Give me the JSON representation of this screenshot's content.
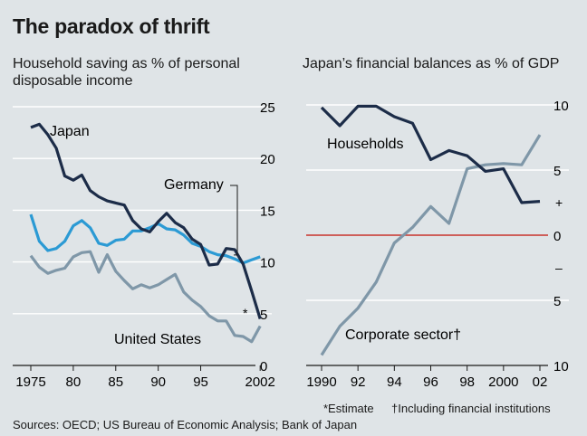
{
  "title": "The paradox of thrift",
  "sources": "Sources: OECD; US Bureau of Economic Analysis; Bank of Japan",
  "footnotes": {
    "estimate": "*Estimate",
    "including": "†Including financial institutions"
  },
  "colors": {
    "background": "#dfe4e7",
    "japan": "#1c2c48",
    "germany": "#2b9ad4",
    "united_states": "#7f97a8",
    "households": "#1c2c48",
    "corporate": "#7f97a8",
    "zero_line": "#c8332b",
    "grid": "#ffffff"
  },
  "chart_data": [
    {
      "type": "line",
      "title": "",
      "subtitle": "Household saving as % of personal disposable income",
      "xlabel": "",
      "ylabel": "",
      "xlim": [
        1975,
        2002
      ],
      "ylim": [
        0,
        25
      ],
      "x_ticks": [
        1975,
        1980,
        1985,
        1990,
        1995,
        2002
      ],
      "x_tick_labels": [
        "1975",
        "80",
        "85",
        "90",
        "95",
        "2002"
      ],
      "y_ticks": [
        0,
        5,
        10,
        15,
        20,
        25
      ],
      "y_tick_labels": [
        "0",
        "5",
        "10",
        "15",
        "20",
        "25"
      ],
      "grid": "horizontal",
      "annotation": "*",
      "series": [
        {
          "name": "Japan",
          "x": [
            1975,
            1976,
            1977,
            1978,
            1979,
            1980,
            1981,
            1982,
            1983,
            1984,
            1985,
            1986,
            1987,
            1988,
            1989,
            1990,
            1991,
            1992,
            1993,
            1994,
            1995,
            1996,
            1997,
            1998,
            1999,
            2000,
            2001,
            2002
          ],
          "values": [
            23.0,
            23.3,
            22.3,
            21.0,
            18.3,
            17.9,
            18.4,
            16.9,
            16.3,
            15.9,
            15.7,
            15.5,
            14.0,
            13.2,
            12.9,
            13.9,
            14.7,
            13.8,
            13.3,
            12.2,
            11.7,
            9.7,
            9.8,
            11.3,
            11.2,
            9.8,
            7.2,
            4.5
          ]
        },
        {
          "name": "Germany",
          "x": [
            1975,
            1976,
            1977,
            1978,
            1979,
            1980,
            1981,
            1982,
            1983,
            1984,
            1985,
            1986,
            1987,
            1988,
            1989,
            1990,
            1991,
            1992,
            1993,
            1994,
            1995,
            1996,
            1997,
            1998,
            1999,
            2000,
            2001,
            2002
          ],
          "values": [
            14.6,
            12.0,
            11.1,
            11.3,
            12.0,
            13.5,
            14.0,
            13.3,
            11.8,
            11.6,
            12.1,
            12.2,
            13.0,
            13.0,
            13.3,
            13.7,
            13.2,
            13.1,
            12.6,
            11.8,
            11.5,
            11.0,
            10.7,
            10.6,
            10.3,
            9.9,
            10.2,
            10.5
          ]
        },
        {
          "name": "United States",
          "x": [
            1975,
            1976,
            1977,
            1978,
            1979,
            1980,
            1981,
            1982,
            1983,
            1984,
            1985,
            1986,
            1987,
            1988,
            1989,
            1990,
            1991,
            1992,
            1993,
            1994,
            1995,
            1996,
            1997,
            1998,
            1999,
            2000,
            2001,
            2002
          ],
          "values": [
            10.6,
            9.5,
            8.9,
            9.2,
            9.4,
            10.5,
            10.9,
            11.0,
            9.0,
            10.7,
            9.1,
            8.2,
            7.4,
            7.8,
            7.5,
            7.8,
            8.3,
            8.8,
            7.1,
            6.3,
            5.7,
            4.8,
            4.3,
            4.3,
            2.9,
            2.8,
            2.3,
            3.8
          ]
        }
      ]
    },
    {
      "type": "line",
      "title": "",
      "subtitle": "Japan’s financial balances as % of GDP",
      "xlabel": "",
      "ylabel": "",
      "xlim": [
        1990,
        2002
      ],
      "ylim": [
        -10,
        10
      ],
      "x_ticks": [
        1990,
        1992,
        1994,
        1996,
        1998,
        2000,
        2002
      ],
      "x_tick_labels": [
        "1990",
        "92",
        "94",
        "96",
        "98",
        "2000",
        "02"
      ],
      "y_ticks": [
        10,
        5,
        0,
        -5,
        -10
      ],
      "y_tick_labels": [
        "10",
        "5",
        "0",
        "5",
        "10"
      ],
      "y_sign_marks": [
        {
          "label": "+",
          "value": 2.5
        },
        {
          "label": "–",
          "value": -2.5
        }
      ],
      "grid": "horizontal",
      "zero_line": true,
      "series": [
        {
          "name": "Households",
          "x": [
            1990,
            1991,
            1992,
            1993,
            1994,
            1995,
            1996,
            1997,
            1998,
            1999,
            2000,
            2001,
            2002
          ],
          "values": [
            9.8,
            8.4,
            9.9,
            9.9,
            9.1,
            8.6,
            5.8,
            6.5,
            6.1,
            4.9,
            5.1,
            2.5,
            2.6
          ]
        },
        {
          "name": "Corporate sector†",
          "x": [
            1990,
            1991,
            1992,
            1993,
            1994,
            1995,
            1996,
            1997,
            1998,
            1999,
            2000,
            2001,
            2002
          ],
          "values": [
            -9.2,
            -7.0,
            -5.6,
            -3.6,
            -0.6,
            0.6,
            2.2,
            0.9,
            5.1,
            5.4,
            5.5,
            5.4,
            7.7
          ]
        }
      ]
    }
  ]
}
